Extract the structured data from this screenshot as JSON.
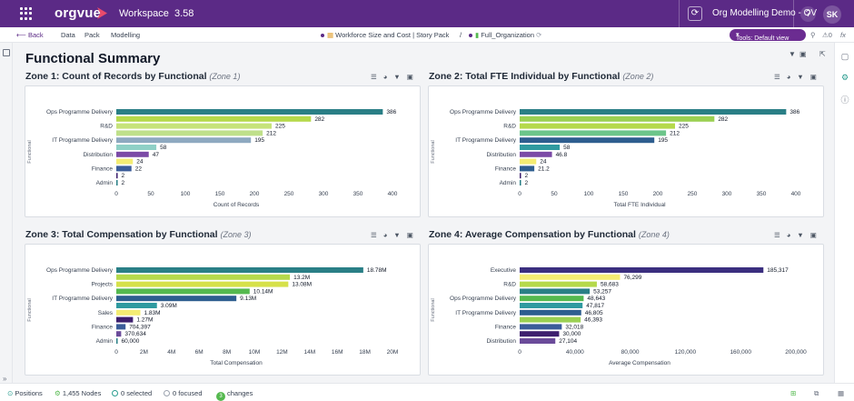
{
  "app": {
    "logo": "orgvue",
    "workspace": "Workspace",
    "version": "3.58",
    "org_context": "Org Modelling Demo - OV",
    "help": "?",
    "user_initials": "SK"
  },
  "subbar": {
    "back": "Back",
    "nav": [
      "Data",
      "Pack",
      "Modelling"
    ],
    "story_pack": "Workforce Size and Cost | Story Pack",
    "slash": "/",
    "dataset": "Full_Organization",
    "tools": "Tools: Default view"
  },
  "page": {
    "title": "Functional Summary",
    "ylabel": "Functional"
  },
  "colors": {
    "teal": "#2a7f86",
    "lime": "#b5d94b",
    "lightgreen": "#c6e37a",
    "slate": "#8ea9c0",
    "sea": "#7cc7bf",
    "purple": "#7b4aa6",
    "yellow": "#f4ec73",
    "navy": "#2d3b73",
    "indigo": "#3b2f7f",
    "midblue": "#2e5e8f",
    "green": "#55b94f",
    "darkpurple": "#3d1f6e",
    "aqua": "#2f9aa0"
  },
  "chart_data": [
    {
      "type": "bar",
      "orientation": "horizontal",
      "title": "Zone 1: Count of Records by Functional",
      "subtitle": "(Zone 1)",
      "xlabel": "Count of Records",
      "ylabel": "Functional",
      "xlim": [
        0,
        400
      ],
      "ticks": [
        "0",
        "50",
        "100",
        "150",
        "200",
        "250",
        "300",
        "350",
        "400"
      ],
      "categories": [
        "Ops Programme Delivery",
        "",
        "R&D",
        "",
        "IT Programme Delivery",
        "",
        "Distribution",
        "",
        "Finance",
        "",
        "Admin"
      ],
      "values": [
        386,
        282,
        225,
        212,
        195,
        58,
        47,
        24,
        22,
        2,
        2
      ],
      "labels": [
        "386",
        "282",
        "225",
        "212",
        "195",
        "58",
        "47",
        "24",
        "22",
        "2",
        "2"
      ],
      "colors": [
        "#2a7f86",
        "#b5d94b",
        "#c6e37a",
        "#bfe08a",
        "#8ea9c0",
        "#8fd0c6",
        "#7b4aa6",
        "#f4ec73",
        "#3b5c99",
        "#3d1f6e",
        "#2a7f86"
      ]
    },
    {
      "type": "bar",
      "orientation": "horizontal",
      "title": "Zone 2: Total FTE Individual by Functional",
      "subtitle": "(Zone 2)",
      "xlabel": "Total FTE Individual",
      "ylabel": "Functional",
      "xlim": [
        0,
        400
      ],
      "ticks": [
        "0",
        "50",
        "100",
        "150",
        "200",
        "250",
        "300",
        "350",
        "400"
      ],
      "categories": [
        "Ops Programme Delivery",
        "",
        "R&D",
        "",
        "IT Programme Delivery",
        "",
        "Distribution",
        "",
        "Finance",
        "",
        "Admin"
      ],
      "values": [
        386,
        282,
        225,
        212,
        195,
        58,
        46.8,
        24,
        21.2,
        2,
        2
      ],
      "labels": [
        "386",
        "282",
        "225",
        "212",
        "195",
        "58",
        "46.8",
        "24",
        "21.2",
        "2",
        "2"
      ],
      "colors": [
        "#2a7f86",
        "#9bd052",
        "#b5d94b",
        "#6cc58a",
        "#2e5e8f",
        "#2f9aa0",
        "#7b4aa6",
        "#f4ec73",
        "#2e5e8f",
        "#3d1f6e",
        "#2a7f86"
      ]
    },
    {
      "type": "bar",
      "orientation": "horizontal",
      "title": "Zone 3: Total Compensation by Functional",
      "subtitle": "(Zone 3)",
      "xlabel": "Total Compensation",
      "ylabel": "Functional",
      "xlim": [
        0,
        21000000
      ],
      "ticks": [
        "0",
        "2M",
        "4M",
        "6M",
        "8M",
        "10M",
        "12M",
        "14M",
        "16M",
        "18M",
        "20M"
      ],
      "categories": [
        "Ops Programme Delivery",
        "",
        "Projects",
        "",
        "IT Programme Delivery",
        "",
        "Sales",
        "",
        "Finance",
        "",
        "Admin"
      ],
      "values": [
        18780000,
        13200000,
        13080000,
        10140000,
        9130000,
        3090000,
        1830000,
        1270000,
        704397,
        370634,
        60000
      ],
      "labels": [
        "18.78M",
        "13.2M",
        "13.08M",
        "10.14M",
        "9.13M",
        "3.09M",
        "1.83M",
        "1.27M",
        "704,397",
        "370,634",
        "60,000"
      ],
      "colors": [
        "#2a7f86",
        "#b5d94b",
        "#d6e14a",
        "#55b94f",
        "#2e5e8f",
        "#2f9aa0",
        "#f4ec73",
        "#3d1f6e",
        "#3b5c99",
        "#6b4b9a",
        "#2a7f86"
      ]
    },
    {
      "type": "bar",
      "orientation": "horizontal",
      "title": "Zone 4: Average Compensation by Functional",
      "subtitle": "(Zone 4)",
      "xlabel": "Average Compensation",
      "ylabel": "Functional",
      "xlim": [
        0,
        210000
      ],
      "ticks": [
        "0",
        "40,000",
        "80,000",
        "120,000",
        "160,000",
        "200,000"
      ],
      "categories": [
        "Executive",
        "",
        "R&D",
        "",
        "Ops Programme Delivery",
        "",
        "IT Programme Delivery",
        "",
        "Finance",
        "",
        "Distribution"
      ],
      "values": [
        185317,
        76299,
        58683,
        53257,
        48643,
        47817,
        46805,
        46393,
        32018,
        30000,
        27104
      ],
      "labels": [
        "185,317",
        "76,299",
        "58,683",
        "53,257",
        "48,643",
        "47,817",
        "46,805",
        "46,393",
        "32,018",
        "30,000",
        "27,104"
      ],
      "colors": [
        "#3b2f7f",
        "#f4ec73",
        "#b5d94b",
        "#2a7f86",
        "#55b94f",
        "#2f9aa0",
        "#2e5e8f",
        "#9bd052",
        "#3b5c99",
        "#3d1f6e",
        "#6b4b9a"
      ]
    }
  ],
  "status": {
    "positions": "Positions",
    "nodes": "1,455 Nodes",
    "selected": "0 selected",
    "focused": "0 focused",
    "changes": "changes",
    "changes_count": "3"
  }
}
